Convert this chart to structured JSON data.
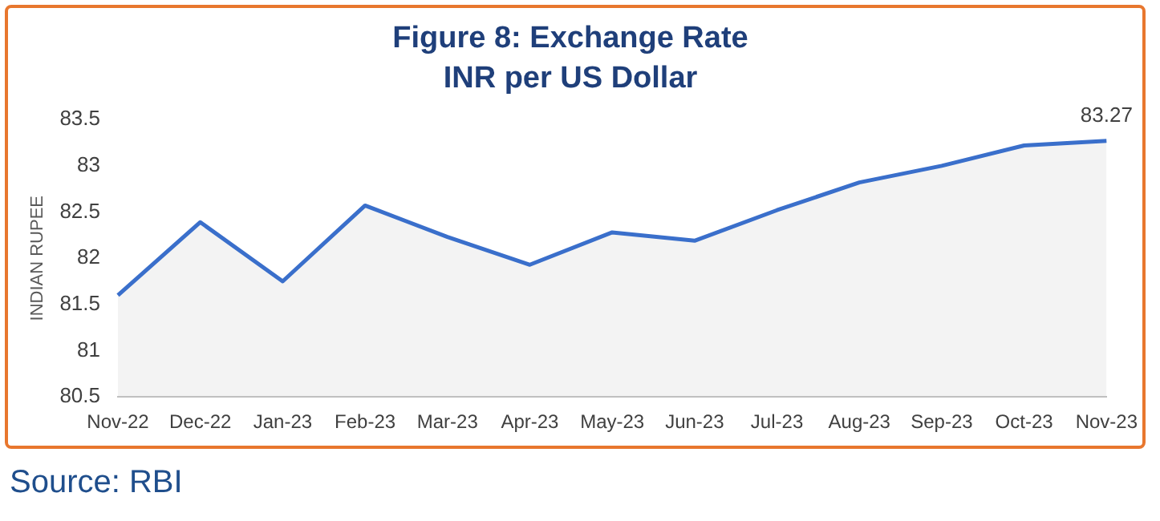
{
  "chart_data": {
    "type": "area",
    "title": "Figure 8: Exchange Rate",
    "subtitle": "INR per US Dollar",
    "ylabel": "INDIAN RUPEE",
    "categories": [
      "Nov-22",
      "Dec-22",
      "Jan-23",
      "Feb-23",
      "Mar-23",
      "Apr-23",
      "May-23",
      "Jun-23",
      "Jul-23",
      "Aug-23",
      "Sep-23",
      "Oct-23",
      "Nov-23"
    ],
    "series": [
      {
        "color": "#3a6fcb",
        "values": [
          81.6,
          82.39,
          81.75,
          82.57,
          82.23,
          81.93,
          82.28,
          82.19,
          82.52,
          82.82,
          83.0,
          83.22,
          83.27
        ],
        "value_labels": [
          null,
          null,
          null,
          null,
          null,
          null,
          null,
          null,
          null,
          null,
          null,
          null,
          "83.27"
        ]
      }
    ],
    "ylim": [
      80.5,
      83.5
    ],
    "yticks": [
      80.5,
      81,
      81.5,
      82,
      82.5,
      83,
      83.5
    ],
    "grid": false,
    "legend": false,
    "marker": "none",
    "line_style": "solid",
    "annotations": [
      "Source: RBI"
    ]
  }
}
